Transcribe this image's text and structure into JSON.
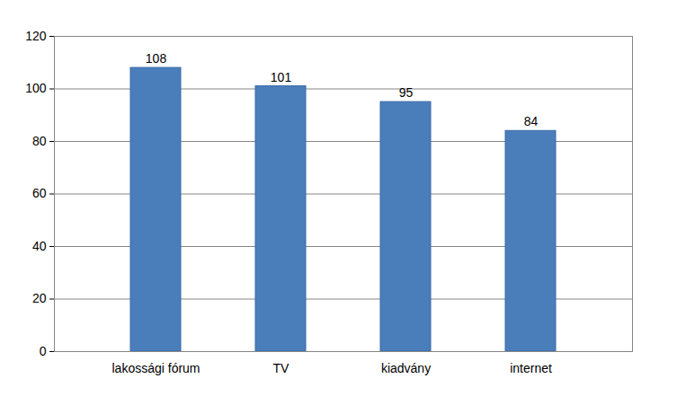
{
  "chart_data": {
    "type": "bar",
    "categories": [
      "lakossági fórum",
      "TV",
      "kiadvány",
      "internet"
    ],
    "values": [
      108,
      101,
      95,
      84
    ],
    "color": "#4a7ebb",
    "ylim": [
      0,
      120
    ],
    "yticks": [
      0,
      20,
      40,
      60,
      80,
      100,
      120
    ],
    "grid": true,
    "data_labels": true
  }
}
